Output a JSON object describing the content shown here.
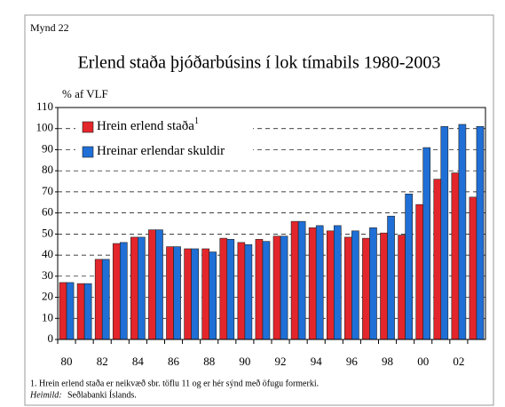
{
  "chart_data": {
    "type": "bar",
    "figure_label": "Mynd 22",
    "title": "Erlend staða þjóðarbúsins í lok tímabils 1980-2003",
    "y_label": "% af VLF",
    "categories": [
      "80",
      null,
      "82",
      null,
      "84",
      null,
      "86",
      null,
      "88",
      null,
      "90",
      null,
      "92",
      null,
      "94",
      null,
      "96",
      null,
      "98",
      null,
      "00",
      null,
      "02",
      null
    ],
    "series": [
      {
        "name": "Hrein erlend staða",
        "note_mark": "1",
        "color": "#e3262b",
        "values": [
          27,
          26.5,
          38,
          45.5,
          48.5,
          52,
          44,
          43,
          43,
          48,
          46,
          47.5,
          49,
          56,
          53,
          51.5,
          48.5,
          48,
          50.5,
          49.5,
          64,
          76,
          79,
          67.5
        ]
      },
      {
        "name": "Hreinar erlendar skuldir",
        "color": "#1f6fd6",
        "values": [
          27,
          26.5,
          38,
          46,
          48.5,
          52,
          44,
          43,
          41.5,
          47.5,
          45,
          46.5,
          49,
          56,
          54,
          54,
          51.5,
          53,
          58.5,
          69,
          91,
          101,
          102,
          101
        ]
      }
    ],
    "ylim": [
      0,
      110
    ],
    "yticks": [
      0,
      10,
      20,
      30,
      40,
      50,
      60,
      70,
      80,
      90,
      100,
      110
    ],
    "grid": true,
    "legend": "upper left",
    "footnote": "1. Hrein erlend staða er neikvæð sbr. töflu 11 og er hér sýnd með öfugu formerki.",
    "source_label": "Heimild:",
    "source": "Seðlabanki Íslands."
  }
}
